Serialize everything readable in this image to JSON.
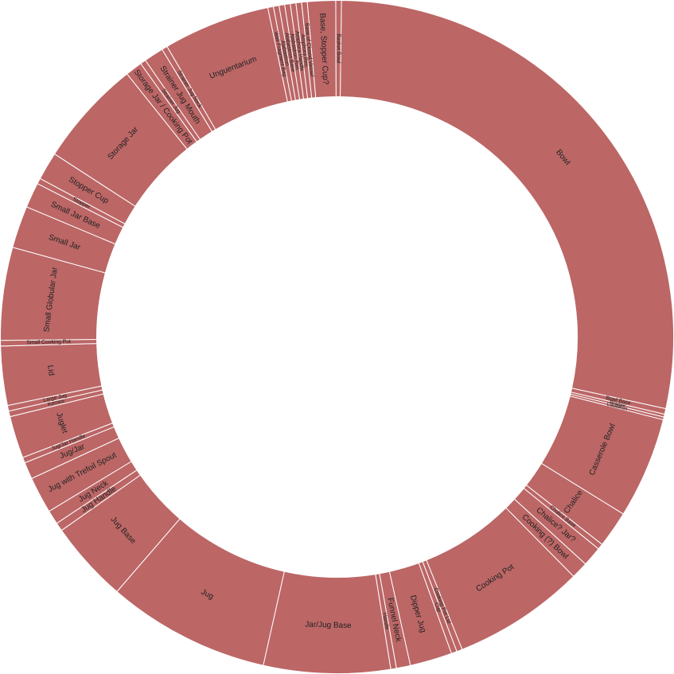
{
  "chart_data": {
    "type": "pie",
    "style": "donut",
    "color": "#BC6666",
    "slices": [
      {
        "label": "Bowl",
        "value": 209
      },
      {
        "label": "Bowl Base",
        "value": 2
      },
      {
        "label": "Brazier",
        "value": 1
      },
      {
        "label": "Cauldron",
        "value": 1
      },
      {
        "label": "Casserole Bowl",
        "value": 36
      },
      {
        "label": "Chalice",
        "value": 13
      },
      {
        "label": "Chalice Base",
        "value": 2
      },
      {
        "label": "Chalice? Jar?",
        "value": 7
      },
      {
        "label": "Cooking (?) Bowl",
        "value": 6
      },
      {
        "label": "Cooking Pot",
        "value": 47
      },
      {
        "label": "Cooking Pot Lid",
        "value": 2
      },
      {
        "label": "Cup",
        "value": 2
      },
      {
        "label": "Dipper Jug",
        "value": 15
      },
      {
        "label": "Funnel Neck",
        "value": 5
      },
      {
        "label": "Handle",
        "value": 2
      },
      {
        "label": "Jar/Jug Base",
        "value": 45
      },
      {
        "label": "Jug",
        "value": 58
      },
      {
        "label": "Jug Base",
        "value": 29
      },
      {
        "label": "Jug Handle",
        "value": 3
      },
      {
        "label": "Jug Neck",
        "value": 5
      },
      {
        "label": "Jug with Trefoil Spout",
        "value": 13
      },
      {
        "label": "Jug/Jar",
        "value": 6
      },
      {
        "label": "Jug/Jar Handle",
        "value": 2
      },
      {
        "label": "Juglet",
        "value": 15
      },
      {
        "label": "Kernos",
        "value": 2
      },
      {
        "label": "Large Jug",
        "value": 2
      },
      {
        "label": "Lid",
        "value": 21
      },
      {
        "label": "Small Cooking Pot",
        "value": 2
      },
      {
        "label": "Small Globular Jar",
        "value": 33
      },
      {
        "label": "Small Jar",
        "value": 15
      },
      {
        "label": "Small Jar Base",
        "value": 9
      },
      {
        "label": "Stopper",
        "value": 2
      },
      {
        "label": "Stopper Cup",
        "value": 10
      },
      {
        "label": "Storage Jar",
        "value": 38
      },
      {
        "label": "Storage Jar / Cooking Pot",
        "value": 6
      },
      {
        "label": "Strainer Jug",
        "value": 2
      },
      {
        "label": "Strainer Jug Mouth",
        "value": 7
      },
      {
        "label": "Strainer Jug Neck",
        "value": 2
      },
      {
        "label": "Unguentarium",
        "value": 38
      },
      {
        "label": "Wall Fragment Bag",
        "value": 2
      },
      {
        "label": "Alabastron",
        "value": 2
      },
      {
        "label": "Alabastron Base",
        "value": 2
      },
      {
        "label": "Alabastron Rim",
        "value": 2
      },
      {
        "label": "Amphora Handle",
        "value": 2
      },
      {
        "label": "Amphora Rim",
        "value": 2
      },
      {
        "label": "Base of Closed Vessel",
        "value": 2
      },
      {
        "label": "Base, Stopper Cup?",
        "value": 10
      },
      {
        "label": "Basket Bowl",
        "value": 2
      }
    ]
  }
}
